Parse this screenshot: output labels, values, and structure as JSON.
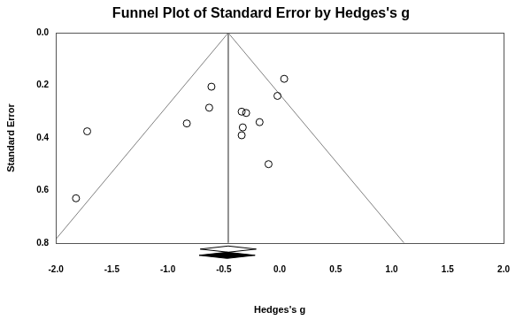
{
  "chart_data": {
    "type": "scatter",
    "title": "Funnel Plot of Standard Error by Hedges's g",
    "x_label": "Hedges's g",
    "y_label": "Standard Error",
    "xlim": [
      -2,
      2
    ],
    "xticks": [
      {
        "value": -2,
        "label": "-2.0"
      },
      -1.5,
      {
        "value": -1,
        "label": "-1.0"
      },
      -0.5,
      {
        "value": 0,
        "label": "0.0"
      },
      0.5,
      {
        "value": 1,
        "label": "1.0"
      },
      1.5,
      {
        "value": 2,
        "label": "2.0"
      }
    ],
    "ylim": [
      0.8,
      0
    ],
    "yticks": [
      {
        "value": 0,
        "label": "0.0"
      },
      0.2,
      0.4,
      0.6,
      0.8
    ],
    "grid": false,
    "series": [
      {
        "type": "scatter",
        "marker": "circle",
        "color": "#000000",
        "x": [
          -1.82,
          -1.72,
          -0.83,
          -0.63,
          -0.61,
          -0.34,
          -0.3,
          -0.33,
          -0.34,
          -0.18,
          -0.1,
          -0.02,
          0.04
        ],
        "values": [
          0.63,
          0.375,
          0.345,
          0.285,
          0.205,
          0.3,
          0.305,
          0.36,
          0.39,
          0.34,
          0.5,
          0.24,
          0.175
        ]
      },
      {
        "type": "line",
        "line_style": "solid",
        "color": "#808080",
        "x": [
          -0.46,
          -0.46
        ],
        "values": [
          0,
          0.8
        ]
      },
      {
        "type": "line",
        "line_style": "solid",
        "color": "#808080",
        "x": [
          -0.46,
          -2.0
        ],
        "values": [
          0,
          0.786
        ]
      },
      {
        "type": "line",
        "line_style": "solid",
        "color": "#808080",
        "x": [
          -0.46,
          1.11
        ],
        "values": [
          0,
          0.8
        ]
      }
    ],
    "summary": [
      {
        "estimate": -0.46,
        "lower": -0.71,
        "upper": -0.21,
        "color": "#ffffff"
      },
      {
        "estimate": -0.47,
        "lower": -0.72,
        "upper": -0.22,
        "color": "#000000"
      }
    ]
  }
}
